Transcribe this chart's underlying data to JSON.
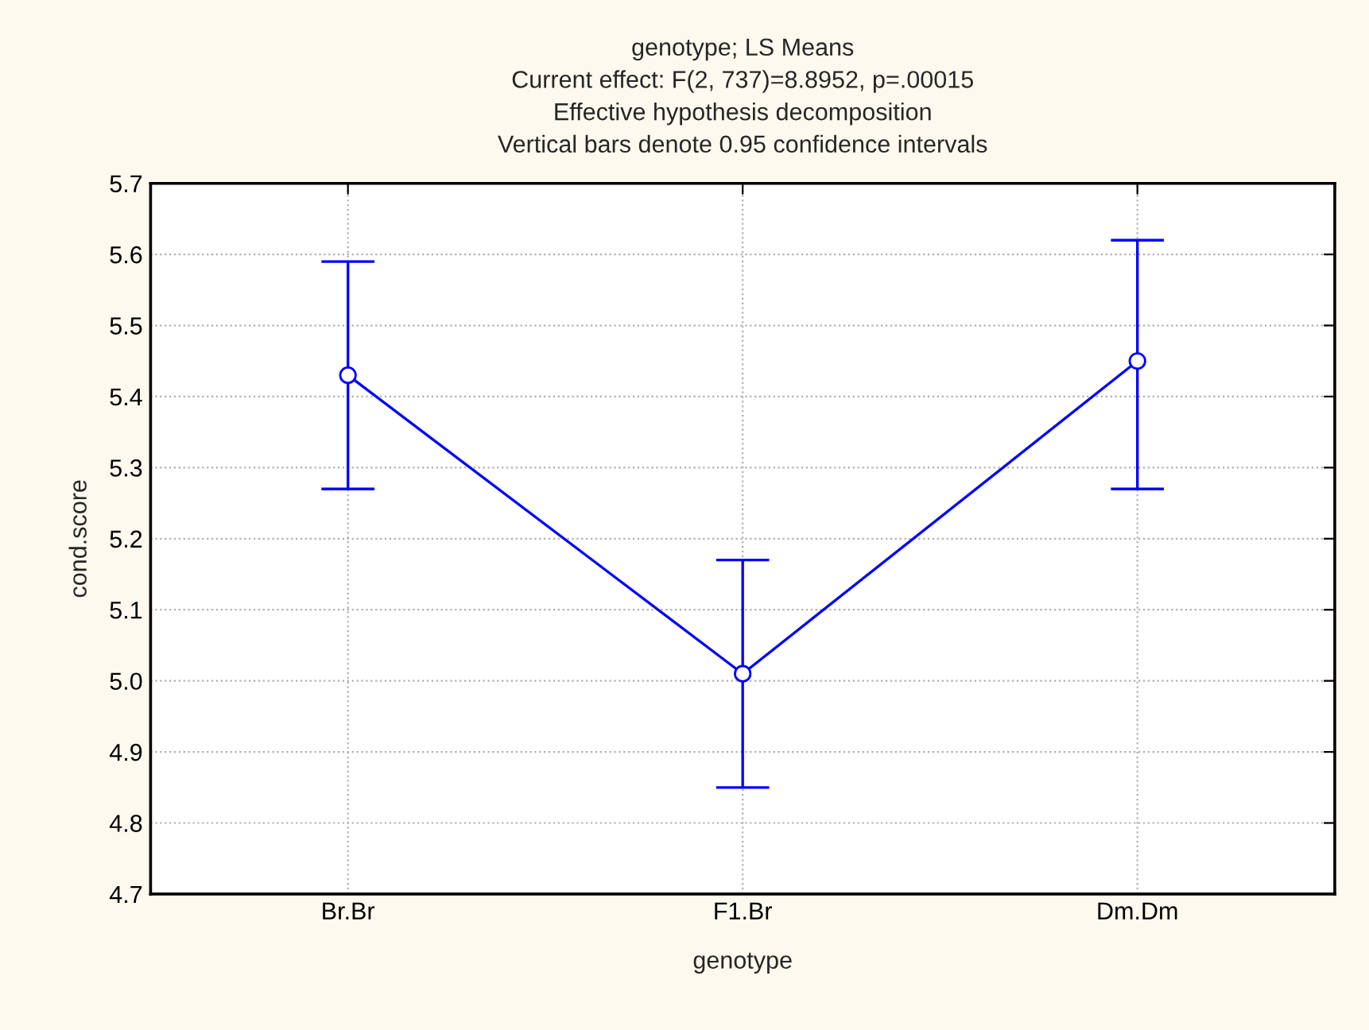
{
  "chart_data": {
    "type": "line",
    "title": "genotype; LS Means\nCurrent effect: F(2, 737)=8.8952, p=.00015\nEffective hypothesis decomposition\nVertical bars denote 0.95 confidence intervals",
    "xlabel": "genotype",
    "ylabel": "cond.score",
    "categories": [
      "Br.Br",
      "F1.Br",
      "Dm.Dm"
    ],
    "series": [
      {
        "color": "#0000ff",
        "values": [
          5.43,
          5.01,
          5.45
        ],
        "errors": [
          [
            5.27,
            5.59
          ],
          [
            4.85,
            5.17
          ],
          [
            5.27,
            5.62
          ]
        ]
      }
    ],
    "ylim": [
      4.7,
      5.7
    ],
    "yticks": [
      {
        "value": 4.7,
        "label": "4.7"
      },
      {
        "value": 4.8,
        "label": "4.8"
      },
      {
        "value": 4.9,
        "label": "4.9"
      },
      {
        "value": 5.0,
        "label": "5.0"
      },
      {
        "value": 5.1,
        "label": "5.1"
      },
      {
        "value": 5.2,
        "label": "5.2"
      },
      {
        "value": 5.3,
        "label": "5.3"
      },
      {
        "value": 5.4,
        "label": "5.4"
      },
      {
        "value": 5.5,
        "label": "5.5"
      },
      {
        "value": 5.6,
        "label": "5.6"
      },
      {
        "value": 5.7,
        "label": "5.7"
      }
    ],
    "grid": true,
    "marker": "circle",
    "line_style": "solid"
  }
}
